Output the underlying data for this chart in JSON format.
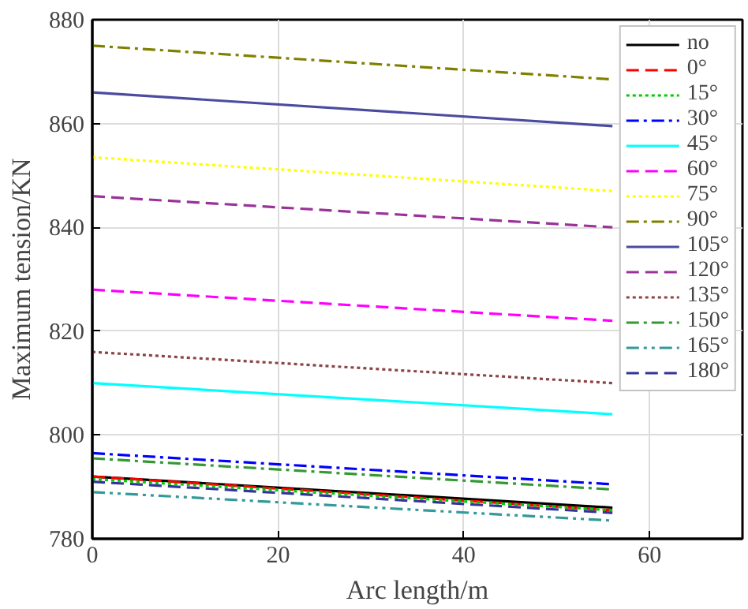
{
  "chart_data": {
    "type": "line",
    "xlabel": "Arc length/m",
    "ylabel": "Maximum tension/KN",
    "x": [
      0,
      56
    ],
    "xlim": [
      0,
      70
    ],
    "xticks": [
      0,
      20,
      40,
      60
    ],
    "ylim": [
      780,
      880
    ],
    "yticks": [
      780,
      800,
      820,
      840,
      860,
      880
    ],
    "grid": true,
    "legend": "top right",
    "marker": "none",
    "series": [
      {
        "name": "no",
        "color": "#000000",
        "line_style": "solid",
        "values": [
          792,
          786
        ]
      },
      {
        "name": "0°",
        "color": "#ff0000",
        "line_style": "dashed",
        "values": [
          792,
          785.5
        ]
      },
      {
        "name": "15°",
        "color": "#00cc00",
        "line_style": "dotted",
        "values": [
          791.5,
          785.5
        ]
      },
      {
        "name": "30°",
        "color": "#0000ff",
        "line_style": "dashdot",
        "values": [
          796.5,
          790.5
        ]
      },
      {
        "name": "45°",
        "color": "#00ffff",
        "line_style": "solid",
        "values": [
          810,
          804
        ]
      },
      {
        "name": "60°",
        "color": "#ff00ff",
        "line_style": "dashed",
        "values": [
          828,
          822
        ]
      },
      {
        "name": "75°",
        "color": "#ffff00",
        "line_style": "dotted",
        "values": [
          853.5,
          847
        ]
      },
      {
        "name": "90°",
        "color": "#808000",
        "line_style": "dashdot",
        "values": [
          875,
          868.5
        ]
      },
      {
        "name": "105°",
        "color": "#4b4ba0",
        "line_style": "solid",
        "values": [
          866,
          859.5
        ]
      },
      {
        "name": "120°",
        "color": "#993399",
        "line_style": "dashed",
        "values": [
          846,
          840
        ]
      },
      {
        "name": "135°",
        "color": "#8b4444",
        "line_style": "dotted",
        "values": [
          816,
          810
        ]
      },
      {
        "name": "150°",
        "color": "#339933",
        "line_style": "dashdot",
        "values": [
          795.5,
          789.5
        ]
      },
      {
        "name": "165°",
        "color": "#339999",
        "line_style": "dashdotdot",
        "values": [
          789,
          783.5
        ]
      },
      {
        "name": "180°",
        "color": "#333399",
        "line_style": "dashed",
        "values": [
          791,
          785
        ]
      }
    ]
  }
}
